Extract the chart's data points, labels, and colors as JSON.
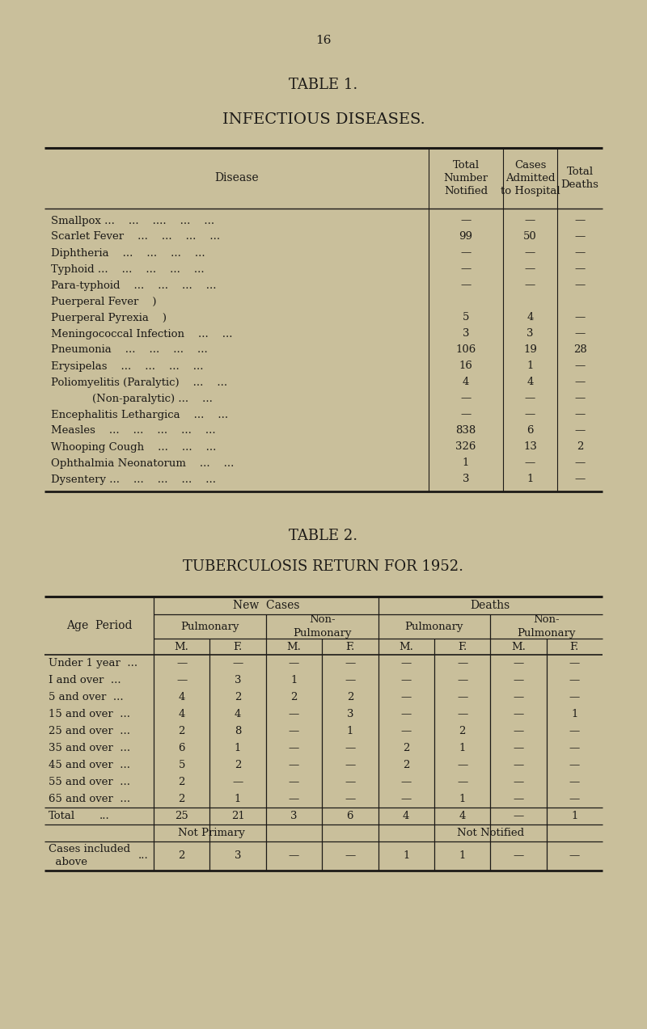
{
  "bg_color": "#c9bf9b",
  "page_num": "16",
  "table1_title": "TABLE 1.",
  "table1_subtitle": "INFECTIOUS DISEASES.",
  "table1_rows": [
    [
      "Smallpox ...    ...    ....    ...    ...",
      "—",
      "—",
      "—"
    ],
    [
      "Scarlet Fever    ...    ...    ...    ...",
      "99",
      "50",
      "—"
    ],
    [
      "Diphtheria    ...    ...    ...    ...",
      "—",
      "—",
      "—"
    ],
    [
      "Typhoid ...    ...    ...    ...    ...",
      "—",
      "—",
      "—"
    ],
    [
      "Para-typhoid    ...    ...    ...    ...",
      "—",
      "—",
      "—"
    ],
    [
      "Puerperal Fever    )",
      "",
      "",
      ""
    ],
    [
      "Puerperal Pyrexia    )",
      "5",
      "4",
      "—"
    ],
    [
      "Meningococcal Infection    ...    ...",
      "3",
      "3",
      "—"
    ],
    [
      "Pneumonia    ...    ...    ...    ...",
      "106",
      "19",
      "28"
    ],
    [
      "Erysipelas    ...    ...    ...    ...",
      "16",
      "1",
      "—"
    ],
    [
      "Poliomyelitis (Paralytic)    ...    ...",
      "4",
      "4",
      "—"
    ],
    [
      "            (Non-paralytic) ...    ...",
      "—",
      "—",
      "—"
    ],
    [
      "Encephalitis Lethargica    ...    ...",
      "—",
      "—",
      "—"
    ],
    [
      "Measles    ...    ...    ...    ...    ...",
      "838",
      "6",
      "—"
    ],
    [
      "Whooping Cough    ...    ...    ...",
      "326",
      "13",
      "2"
    ],
    [
      "Ophthalmia Neonatorum    ...    ...",
      "1",
      "—",
      "—"
    ],
    [
      "Dysentery ...    ...    ...    ...    ...",
      "3",
      "1",
      "—"
    ]
  ],
  "table2_title": "TABLE 2.",
  "table2_subtitle": "TUBERCULOSIS RETURN FOR 1952.",
  "table2_age_periods": [
    "Under 1 year",
    "I and over",
    "5 and over",
    "15 and over",
    "25 and over",
    "35 and over",
    "45 and over",
    "55 and over",
    "65 and over"
  ],
  "table2_data": {
    "new_pulmonary_m": [
      "—",
      "—",
      "4",
      "4",
      "2",
      "6",
      "5",
      "2",
      "2"
    ],
    "new_pulmonary_f": [
      "—",
      "3",
      "2",
      "4",
      "8",
      "1",
      "2",
      "—",
      "1"
    ],
    "new_nonpulm_m": [
      "—",
      "1",
      "2",
      "—",
      "—",
      "—",
      "—",
      "—",
      "—"
    ],
    "new_nonpulm_f": [
      "—",
      "—",
      "2",
      "3",
      "1",
      "—",
      "—",
      "—",
      "—"
    ],
    "deaths_pulm_m": [
      "—",
      "—",
      "—",
      "—",
      "—",
      "2",
      "2",
      "—",
      "—"
    ],
    "deaths_pulm_f": [
      "—",
      "—",
      "—",
      "—",
      "2",
      "1",
      "—",
      "—",
      "1"
    ],
    "deaths_nonpulm_m": [
      "—",
      "—",
      "—",
      "—",
      "—",
      "—",
      "—",
      "—",
      "—"
    ],
    "deaths_nonpulm_f": [
      "—",
      "—",
      "—",
      "1",
      "—",
      "—",
      "—",
      "—",
      "—"
    ]
  },
  "table2_totals": [
    "25",
    "21",
    "3",
    "6",
    "4",
    "4",
    "—",
    "1"
  ],
  "table2_not_primary_label": "Not Primary",
  "table2_not_notified_label": "Not Notified",
  "table2_cases_included": [
    "2",
    "3",
    "—",
    "—",
    "1",
    "1",
    "—",
    "—"
  ],
  "text_color": "#1c1a17",
  "line_color": "#1c1a17"
}
